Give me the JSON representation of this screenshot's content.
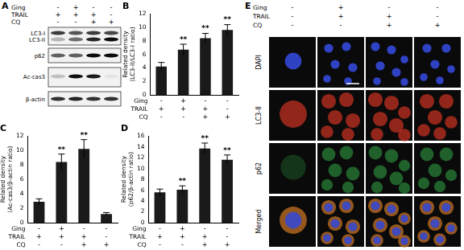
{
  "blot": {
    "title": "A",
    "conditions": [
      {
        "name": "Ging",
        "values": [
          "-",
          "+",
          "-",
          "-"
        ]
      },
      {
        "name": "TRAIL",
        "values": [
          "+",
          "+",
          "+",
          "-"
        ]
      },
      {
        "name": "CQ",
        "values": [
          "-",
          "-",
          "+",
          "+"
        ]
      }
    ],
    "bands": [
      "LC3-I",
      "LC3-II",
      "p62",
      "Ac-cas3",
      "β-actin"
    ]
  },
  "chart_data": [
    {
      "type": "bar",
      "title": "B",
      "y_label": [
        "Related density",
        "(LC3-II/LC3-I ratio)"
      ],
      "categories": [
        null,
        null,
        null,
        null
      ],
      "values": [
        4.2,
        6.7,
        8.4,
        9.6
      ],
      "error": [
        0.6,
        0.8,
        0.7,
        0.8
      ],
      "significance": [
        null,
        "**",
        "**",
        "**"
      ],
      "conditions": [
        {
          "name": "Ging",
          "values": [
            "-",
            "+",
            "-",
            "-"
          ]
        },
        {
          "name": "TRAIL",
          "values": [
            "+",
            "+",
            "+",
            "-"
          ]
        },
        {
          "name": "CQ",
          "values": [
            "-",
            "-",
            "+",
            "+"
          ]
        }
      ],
      "color": "#1a1a1a",
      "ylim": [
        0,
        12
      ],
      "yticks": [
        0,
        2,
        4,
        6,
        8,
        10,
        12
      ],
      "grid": false
    },
    {
      "type": "bar",
      "title": "C",
      "y_label": [
        "Related density",
        "(Ac-cas3/β-actin ratio)"
      ],
      "categories": [
        null,
        null,
        null,
        null
      ],
      "values": [
        2.9,
        8.4,
        10.2,
        1.2
      ],
      "error": [
        0.4,
        1.1,
        1.3,
        0.2
      ],
      "significance": [
        null,
        "**",
        "**",
        null
      ],
      "conditions": [
        {
          "name": "Ging",
          "values": [
            "-",
            "+",
            "-",
            "-"
          ]
        },
        {
          "name": "TRAIL",
          "values": [
            "+",
            "+",
            "+",
            "-"
          ]
        },
        {
          "name": "CQ",
          "values": [
            "-",
            "-",
            "+",
            "+"
          ]
        }
      ],
      "color": "#1a1a1a",
      "ylim": [
        0,
        12
      ],
      "yticks": [
        0,
        2,
        4,
        6,
        8,
        10,
        12
      ],
      "grid": false
    },
    {
      "type": "bar",
      "title": "D",
      "y_label": [
        "Related density",
        "(p62/β-actin ratio)"
      ],
      "categories": [
        null,
        null,
        null,
        null
      ],
      "values": [
        5.6,
        6.1,
        13.7,
        11.6
      ],
      "error": [
        0.6,
        0.7,
        1.0,
        0.9
      ],
      "significance": [
        null,
        "**",
        "**",
        "**"
      ],
      "conditions": [
        {
          "name": "Ging",
          "values": [
            "-",
            "+",
            "-",
            "-"
          ]
        },
        {
          "name": "TRAIL",
          "values": [
            "+",
            "+",
            "+",
            "-"
          ]
        },
        {
          "name": "CQ",
          "values": [
            "-",
            "-",
            "+",
            "+"
          ]
        }
      ],
      "color": "#1a1a1a",
      "ylim": [
        0,
        16
      ],
      "yticks": [
        0,
        2,
        4,
        6,
        8,
        10,
        12,
        14,
        16
      ],
      "grid": false
    }
  ],
  "images": {
    "title": "E",
    "conditions": [
      {
        "name": "Ging",
        "values": [
          "-",
          "+",
          "-",
          "-"
        ]
      },
      {
        "name": "TRAIL",
        "values": [
          "-",
          "+",
          "+",
          "-"
        ]
      },
      {
        "name": "CQ",
        "values": [
          "-",
          "-",
          "+",
          "+"
        ]
      }
    ],
    "rows": [
      "DAPI",
      "LC3-II",
      "p62",
      "Merged"
    ]
  }
}
